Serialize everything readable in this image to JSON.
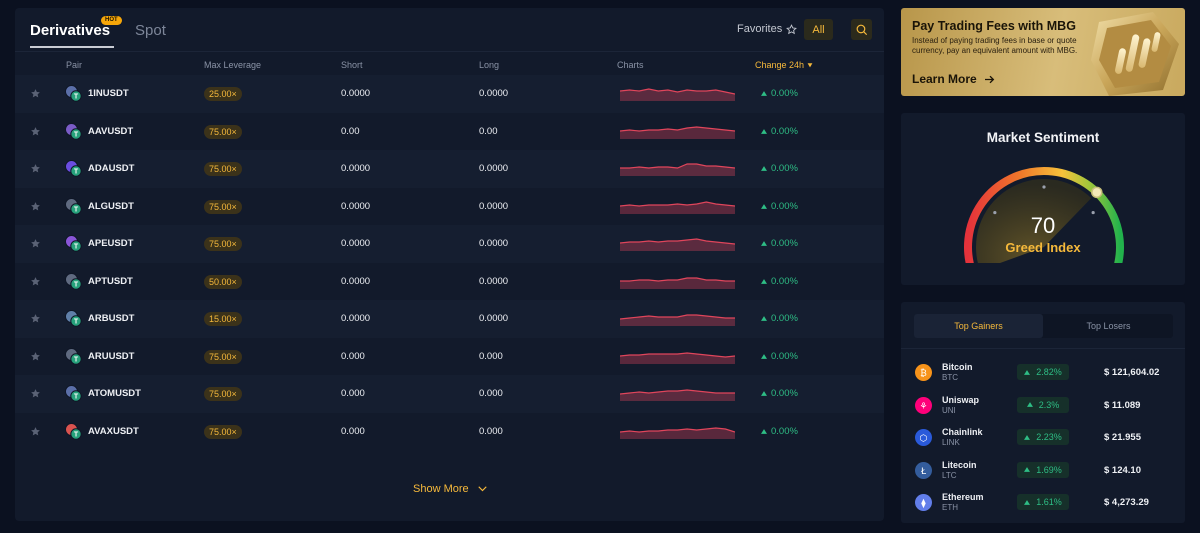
{
  "tabs": {
    "derivatives": "Derivatives",
    "hot": "HOT",
    "spot": "Spot"
  },
  "toolbar": {
    "favorites": "Favorites",
    "all": "All"
  },
  "columns": {
    "pair": "Pair",
    "max_leverage": "Max Leverage",
    "short": "Short",
    "long": "Long",
    "charts": "Charts",
    "change": "Change 24h"
  },
  "rows": [
    {
      "pair": "1INUSDT",
      "lev": "25.00×",
      "short": "0.0000",
      "long": "0.0000",
      "change": "0.00%",
      "coin_color": "#5b6fa8"
    },
    {
      "pair": "AAVUSDT",
      "lev": "75.00×",
      "short": "0.00",
      "long": "0.00",
      "change": "0.00%",
      "coin_color": "#7a5cc7"
    },
    {
      "pair": "ADAUSDT",
      "lev": "75.00×",
      "short": "0.0000",
      "long": "0.0000",
      "change": "0.00%",
      "coin_color": "#6a4de0"
    },
    {
      "pair": "ALGUSDT",
      "lev": "75.00×",
      "short": "0.0000",
      "long": "0.0000",
      "change": "0.00%",
      "coin_color": "#5f6a80"
    },
    {
      "pair": "APEUSDT",
      "lev": "75.00×",
      "short": "0.0000",
      "long": "0.0000",
      "change": "0.00%",
      "coin_color": "#8a56d8"
    },
    {
      "pair": "APTUSDT",
      "lev": "50.00×",
      "short": "0.0000",
      "long": "0.0000",
      "change": "0.00%",
      "coin_color": "#5f6a80"
    },
    {
      "pair": "ARBUSDT",
      "lev": "15.00×",
      "short": "0.0000",
      "long": "0.0000",
      "change": "0.00%",
      "coin_color": "#5f7fa8"
    },
    {
      "pair": "ARUUSDT",
      "lev": "75.00×",
      "short": "0.000",
      "long": "0.000",
      "change": "0.00%",
      "coin_color": "#5f6a80"
    },
    {
      "pair": "ATOMUSDT",
      "lev": "75.00×",
      "short": "0.000",
      "long": "0.000",
      "change": "0.00%",
      "coin_color": "#5b6fa8"
    },
    {
      "pair": "AVAXUSDT",
      "lev": "75.00×",
      "short": "0.000",
      "long": "0.000",
      "change": "0.00%",
      "coin_color": "#d9534f"
    }
  ],
  "show_more": "Show More",
  "promo": {
    "title": "Pay Trading Fees with MBG",
    "text": "Instead of paying trading fees in base or quote currency, pay an equivalent amount with MBG.",
    "link": "Learn More"
  },
  "sentiment": {
    "title": "Market Sentiment",
    "value": 70,
    "label": "Greed Index"
  },
  "movers": {
    "tab_gainers": "Top Gainers",
    "tab_losers": "Top Losers",
    "items": [
      {
        "name": "Bitcoin",
        "symbol": "BTC",
        "change": "2.82%",
        "price": "$ 121,604.02",
        "icon_color": "#f7931a",
        "glyph": "₿"
      },
      {
        "name": "Uniswap",
        "symbol": "UNI",
        "change": "2.3%",
        "price": "$ 11.089",
        "icon_color": "#ff007a",
        "glyph": "⚘"
      },
      {
        "name": "Chainlink",
        "symbol": "LINK",
        "change": "2.23%",
        "price": "$ 21.955",
        "icon_color": "#2a5ada",
        "glyph": "⬡"
      },
      {
        "name": "Litecoin",
        "symbol": "LTC",
        "change": "1.69%",
        "price": "$ 124.10",
        "icon_color": "#345d9d",
        "glyph": "Ł"
      },
      {
        "name": "Ethereum",
        "symbol": "ETH",
        "change": "1.61%",
        "price": "$ 4,273.29",
        "icon_color": "#627eea",
        "glyph": "⧫"
      }
    ]
  },
  "colors": {
    "accent": "#f6b93b",
    "up": "#2ebd85",
    "panel": "#121a2b",
    "background": "#0b1120",
    "spark": "#e0455b"
  }
}
